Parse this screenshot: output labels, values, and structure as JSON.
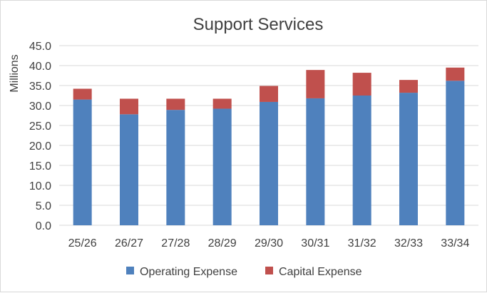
{
  "chart_data": {
    "type": "bar",
    "stacked": true,
    "title": "Support Services",
    "xlabel": "",
    "ylabel": "Millions",
    "ylim": [
      0,
      45
    ],
    "ytick_step": 5,
    "ytick_labels": [
      "0.0",
      "5.0",
      "10.0",
      "15.0",
      "20.0",
      "25.0",
      "30.0",
      "35.0",
      "40.0",
      "45.0"
    ],
    "grid": true,
    "legend_position": "bottom",
    "categories": [
      "25/26",
      "26/27",
      "27/28",
      "28/29",
      "29/30",
      "30/31",
      "31/32",
      "32/33",
      "33/34"
    ],
    "series": [
      {
        "name": "Operating Expense",
        "color": "#4f81bd",
        "values": [
          31.5,
          27.8,
          28.9,
          29.2,
          30.9,
          31.8,
          32.5,
          33.2,
          36.2
        ]
      },
      {
        "name": "Capital Expense",
        "color": "#c0504d",
        "values": [
          2.7,
          3.9,
          2.8,
          2.5,
          4.0,
          7.1,
          5.7,
          3.2,
          3.3
        ]
      }
    ]
  }
}
